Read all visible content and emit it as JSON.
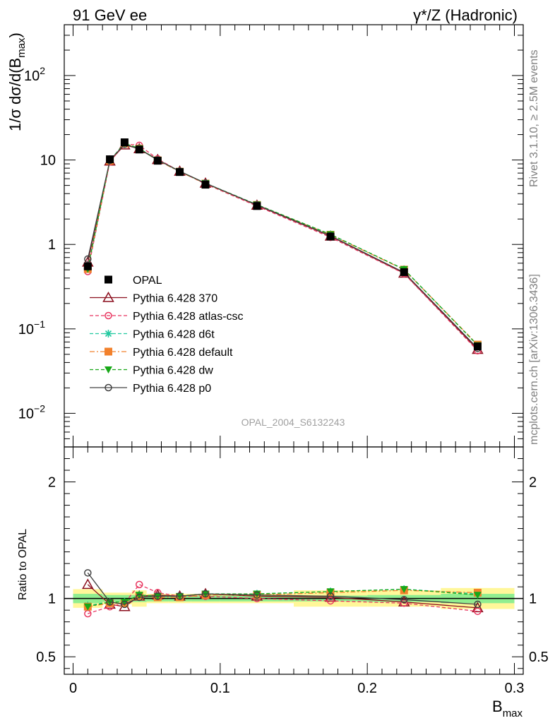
{
  "header": {
    "left_label": "91 GeV ee",
    "right_label": "γ*/Z (Hadronic)"
  },
  "side_labels": {
    "rivet": "Rivet 3.1.10, ≥ 2.5M events",
    "mcplots": "mcplots.cern.ch [arXiv:1306.3436]"
  },
  "watermark": "OPAL_2004_S6132243",
  "axes": {
    "ylabel_main": "1/σ dσ/d(B",
    "ylabel_main_sub": "max",
    "ylabel_main_close": ")",
    "ylabel_ratio": "Ratio to OPAL",
    "xlabel": "B",
    "xlabel_sub": "max",
    "main_ytick_labels": [
      "10",
      "10",
      "1",
      "10",
      "10"
    ],
    "main_ytick_exponents": [
      "−2",
      "−1",
      "",
      "",
      "2"
    ],
    "ratio_ytick_labels": [
      "0.5",
      "1",
      "2"
    ],
    "xtick_labels": [
      "0",
      "0.1",
      "0.2",
      "0.3"
    ]
  },
  "legend": [
    {
      "label": "OPAL",
      "color": "#000000",
      "marker": "filled-square",
      "line": "none"
    },
    {
      "label": "Pythia 6.428 370",
      "color": "#8b0f1e",
      "marker": "open-triangle",
      "line": "solid"
    },
    {
      "label": "Pythia 6.428 atlas-csc",
      "color": "#e8355f",
      "marker": "open-circle",
      "line": "dashed"
    },
    {
      "label": "Pythia 6.428 d6t",
      "color": "#22c9a0",
      "marker": "star",
      "line": "dashed"
    },
    {
      "label": "Pythia 6.428 default",
      "color": "#f2812c",
      "marker": "filled-square",
      "line": "dashdot"
    },
    {
      "label": "Pythia 6.428 dw",
      "color": "#18a818",
      "marker": "filled-triangle-down",
      "line": "dashed"
    },
    {
      "label": "Pythia 6.428 p0",
      "color": "#404040",
      "marker": "open-circle",
      "line": "solid"
    }
  ],
  "chart_data": {
    "type": "line",
    "x": [
      0.01,
      0.025,
      0.035,
      0.045,
      0.0575,
      0.0725,
      0.09,
      0.125,
      0.175,
      0.225,
      0.275
    ],
    "xlim": [
      -0.006,
      0.306
    ],
    "main_ylim": [
      0.004,
      400
    ],
    "main_yscale": "log",
    "ratio_ylim": [
      0.35,
      2.3
    ],
    "data": {
      "values": [
        0.55,
        10.2,
        16.2,
        13.3,
        9.8,
        7.2,
        5.1,
        2.85,
        1.24,
        0.47,
        0.062
      ],
      "bin_edges": [
        0.0,
        0.02,
        0.03,
        0.04,
        0.05,
        0.065,
        0.08,
        0.1,
        0.15,
        0.2,
        0.25,
        0.3
      ],
      "ratio_err_stat": [
        0.04,
        0.03,
        0.03,
        0.03,
        0.025,
        0.025,
        0.025,
        0.025,
        0.025,
        0.03,
        0.04
      ],
      "ratio_err_total": [
        0.08,
        0.05,
        0.05,
        0.07,
        0.04,
        0.04,
        0.04,
        0.04,
        0.07,
        0.07,
        0.09
      ]
    },
    "series": [
      {
        "name": "Pythia 6.428 370",
        "ratio": [
          1.12,
          0.95,
          0.93,
          1.02,
          1.03,
          1.02,
          1.04,
          1.02,
          1.01,
          0.97,
          0.92
        ]
      },
      {
        "name": "Pythia 6.428 atlas-csc",
        "ratio": [
          0.87,
          0.93,
          0.96,
          1.12,
          1.05,
          1.02,
          1.02,
          1.0,
          0.98,
          0.96,
          0.89
        ]
      },
      {
        "name": "Pythia 6.428 d6t",
        "ratio": [
          0.94,
          0.97,
          0.97,
          1.03,
          1.02,
          1.02,
          1.04,
          1.04,
          1.06,
          1.08,
          1.04
        ]
      },
      {
        "name": "Pythia 6.428 default",
        "ratio": [
          0.93,
          0.96,
          0.96,
          1.02,
          1.01,
          1.01,
          1.03,
          1.03,
          1.05,
          1.07,
          1.05
        ]
      },
      {
        "name": "Pythia 6.428 dw",
        "ratio": [
          0.93,
          0.97,
          0.97,
          1.03,
          1.02,
          1.02,
          1.04,
          1.04,
          1.06,
          1.08,
          1.03
        ]
      },
      {
        "name": "Pythia 6.428 p0",
        "ratio": [
          1.22,
          0.97,
          0.95,
          1.01,
          1.02,
          1.02,
          1.04,
          1.03,
          1.02,
          0.99,
          0.95
        ]
      }
    ]
  }
}
